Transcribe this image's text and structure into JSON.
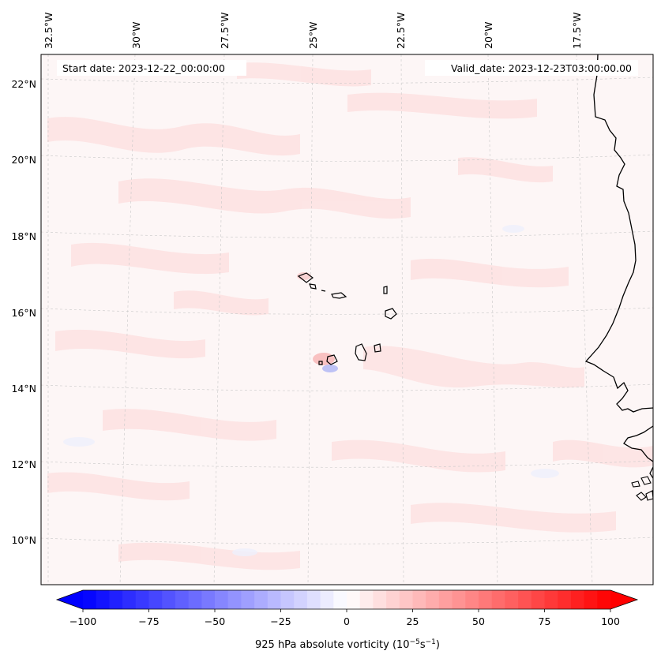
{
  "map": {
    "start_date": "Start date: 2023-12-22_00:00:00",
    "valid_date": "Valid_date: 2023-12-23T03:00:00.00",
    "lon_labels": [
      "32.5°W",
      "30°W",
      "27.5°W",
      "25°W",
      "22.5°W",
      "20°W",
      "17.5°W"
    ],
    "lat_labels": [
      "22°N",
      "20°N",
      "18°N",
      "16°N",
      "14°N",
      "12°N",
      "10°N"
    ],
    "gridlines": true,
    "land_features": [
      "Cape Verde islands",
      "West African coastline"
    ]
  },
  "colorbar": {
    "label_prefix": "925 hPa absolute vorticity (10",
    "exp1": "−5",
    "mid": "s",
    "exp2": "−1",
    "label_suffix": ")",
    "ticks": [
      "−100",
      "−75",
      "−50",
      "−25",
      "0",
      "25",
      "50",
      "75",
      "100"
    ],
    "vmin": -100,
    "vmax": 100,
    "colormap": "bwr",
    "extend": "both",
    "colors": {
      "low": "#0000ff",
      "mid": "#ffffff",
      "high": "#ff0000"
    }
  },
  "colors": {
    "background_field": "#fdf5f5",
    "light_positive": "#fde2e2",
    "coastline": "#000000",
    "grid": "#cccccc"
  }
}
